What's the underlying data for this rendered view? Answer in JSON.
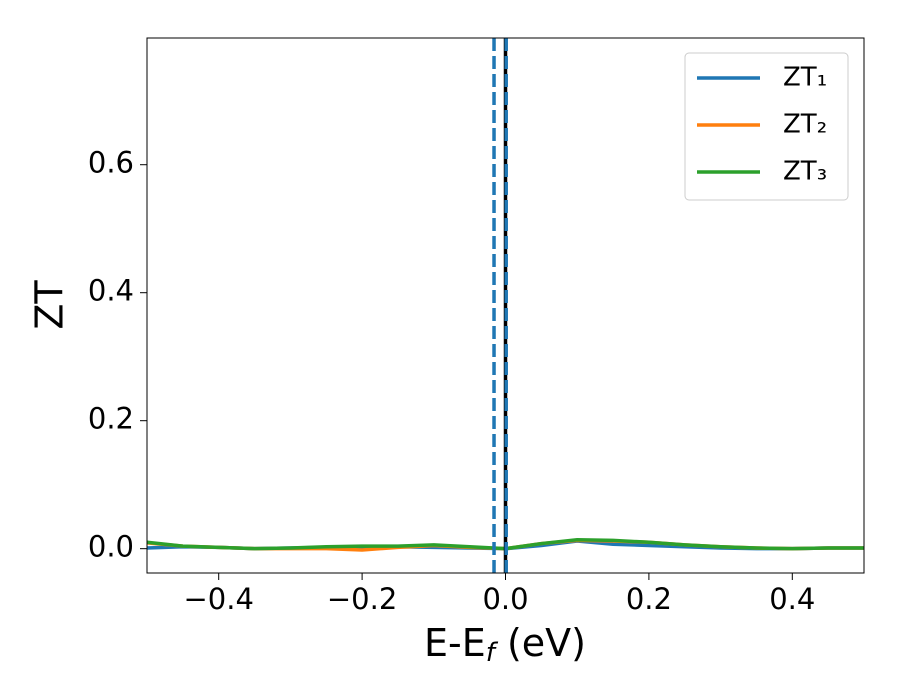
{
  "chart_data": {
    "type": "line",
    "xlabel": [
      "E-E",
      "f",
      " (eV)"
    ],
    "ylabel": "ZT",
    "x": [
      -0.5,
      -0.45,
      -0.4,
      -0.35,
      -0.3,
      -0.25,
      -0.2,
      -0.15,
      -0.1,
      -0.05,
      0.0,
      0.05,
      0.1,
      0.15,
      0.2,
      0.25,
      0.3,
      0.35,
      0.4,
      0.45,
      0.5
    ],
    "series": [
      {
        "name": "ZT₁",
        "color": "#1f77b4",
        "values": [
          0.001,
          0.003,
          0.002,
          0.0,
          0.001,
          0.002,
          0.003,
          0.003,
          0.002,
          0.001,
          0.0,
          0.005,
          0.012,
          0.007,
          0.005,
          0.003,
          0.001,
          0.0,
          0.0,
          0.001,
          0.001
        ]
      },
      {
        "name": "ZT₂",
        "color": "#ff7f0e",
        "values": [
          0.009,
          0.004,
          0.002,
          0.0,
          0.0,
          0.0,
          -0.002,
          0.002,
          0.005,
          0.002,
          0.0,
          0.008,
          0.013,
          0.012,
          0.01,
          0.006,
          0.003,
          0.001,
          0.0,
          0.001,
          0.001
        ]
      },
      {
        "name": "ZT₃",
        "color": "#2ca02c",
        "values": [
          0.01,
          0.004,
          0.002,
          0.0,
          0.001,
          0.003,
          0.004,
          0.004,
          0.006,
          0.003,
          0.0,
          0.008,
          0.014,
          0.013,
          0.01,
          0.006,
          0.003,
          0.001,
          0.0,
          0.001,
          0.001
        ]
      }
    ],
    "vlines": [
      {
        "x": 0.0,
        "color": "#000000",
        "style": "solid"
      },
      {
        "x": -0.016,
        "color": "#1f77b4",
        "style": "dashed"
      },
      {
        "x": 0.001,
        "color": "#1f77b4",
        "style": "dashed"
      }
    ],
    "xlim": [
      -0.5,
      0.5
    ],
    "ylim": [
      -0.038,
      0.798
    ],
    "xticks": [
      {
        "value": -0.4,
        "label": "−0.4"
      },
      {
        "value": -0.2,
        "label": "−0.2"
      },
      {
        "value": 0.0,
        "label": "0.0"
      },
      {
        "value": 0.2,
        "label": "0.2"
      },
      {
        "value": 0.4,
        "label": "0.4"
      }
    ],
    "yticks": [
      {
        "value": 0.0,
        "label": "0.0"
      },
      {
        "value": 0.2,
        "label": "0.2"
      },
      {
        "value": 0.4,
        "label": "0.4"
      },
      {
        "value": 0.6,
        "label": "0.6"
      }
    ],
    "legend": "upper right",
    "grid": false
  }
}
